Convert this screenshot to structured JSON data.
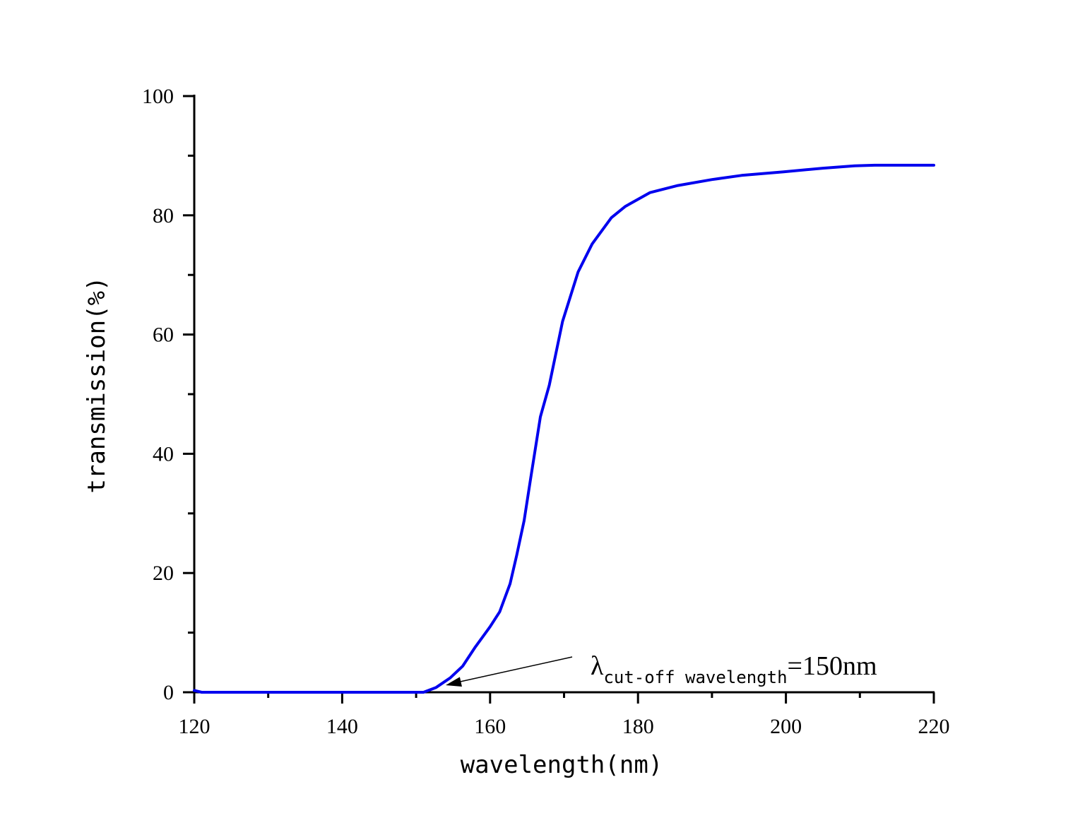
{
  "chart_data": {
    "type": "line",
    "title": "",
    "xlabel": "wavelength(nm)",
    "ylabel": "transmission(%)",
    "xlim": [
      120,
      220
    ],
    "ylim": [
      0,
      100
    ],
    "x_ticks": [
      "120",
      "140",
      "160",
      "180",
      "200",
      "220"
    ],
    "y_ticks": [
      "0",
      "20",
      "40",
      "60",
      "80",
      "100"
    ],
    "grid": false,
    "legend": null,
    "series": [
      {
        "name": "transmission",
        "color": "#0000ee",
        "x": [
          120,
          121,
          130,
          140,
          150,
          151,
          152.7,
          154.6,
          156.3,
          158,
          160,
          161.3,
          162.7,
          163.6,
          164.6,
          165.5,
          166.8,
          168,
          169.8,
          171.9,
          173.8,
          176.4,
          178.3,
          181.6,
          185.4,
          190,
          194,
          199.7,
          205,
          209.3,
          212,
          220
        ],
        "values": [
          0.3,
          0,
          0,
          0,
          0,
          0,
          0.8,
          2.4,
          4.4,
          7.6,
          11,
          13.5,
          18.2,
          23,
          28.8,
          36,
          46.2,
          51.5,
          62.2,
          70.5,
          75.2,
          79.6,
          81.5,
          83.8,
          85,
          86,
          86.7,
          87.3,
          87.9,
          88.3,
          88.4,
          88.4
        ]
      }
    ],
    "annotations": [
      {
        "text_main": "λ",
        "text_subscript": "cut-off wavelength",
        "text_suffix": "=150nm",
        "arrow_from": [
          170,
          6
        ],
        "arrow_to": [
          154,
          1.2
        ]
      }
    ]
  }
}
